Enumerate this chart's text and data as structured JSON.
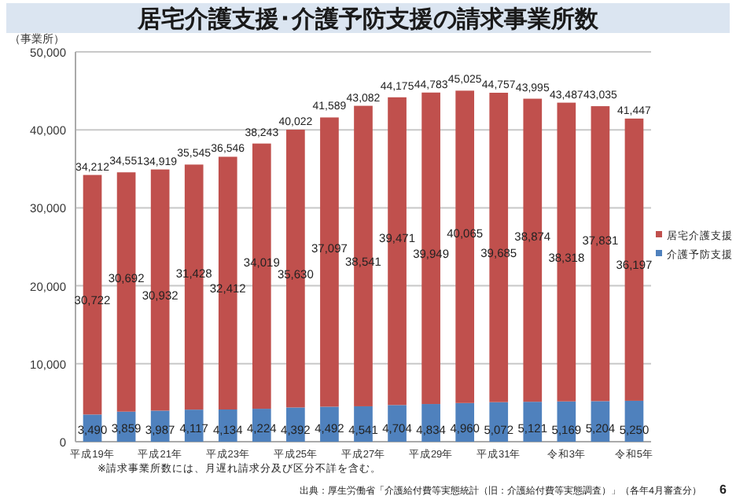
{
  "chart_data": {
    "type": "bar",
    "title": "居宅介護支援･介護予防支援の請求事業所数",
    "ylabel": "（事業所）",
    "categories": [
      "平成19年",
      null,
      "平成21年",
      null,
      "平成23年",
      null,
      "平成25年",
      null,
      "平成27年",
      null,
      "平成29年",
      null,
      "平成31年",
      null,
      "令和3年",
      null,
      "令和5年"
    ],
    "stacked": true,
    "series": [
      {
        "name": "介護予防支援",
        "color": "#4f81bd",
        "values": [
          3490,
          3859,
          3987,
          4117,
          4134,
          4224,
          4392,
          4492,
          4541,
          4704,
          4834,
          4960,
          5072,
          5121,
          5169,
          5204,
          5250
        ],
        "value_labels": [
          "3,490",
          "3,859",
          "3,987",
          "4,117",
          "4,134",
          "4,224",
          "4,392",
          "4,492",
          "4,541",
          "4,704",
          "4,834",
          "4,960",
          "5,072",
          "5,121",
          "5,169",
          "5,204",
          "5,250"
        ]
      },
      {
        "name": "居宅介護支援",
        "color": "#c0504d",
        "values": [
          30722,
          30692,
          30932,
          31428,
          32412,
          34019,
          35630,
          37097,
          38541,
          39471,
          39949,
          40065,
          39685,
          38874,
          38318,
          37831,
          36197
        ],
        "value_labels": [
          "30,722",
          "30,692",
          "30,932",
          "31,428",
          "32,412",
          "34,019",
          "35,630",
          "37,097",
          "38,541",
          "39,471",
          "39,949",
          "40,065",
          "39,685",
          "38,874",
          "38,318",
          "37,831",
          "36,197"
        ]
      }
    ],
    "totals": [
      "34,212",
      "34,551",
      "34,919",
      "35,545",
      "36,546",
      "38,243",
      "40,022",
      "41,589",
      "43,082",
      "44,175",
      "44,783",
      "45,025",
      "44,757",
      "43,995",
      "43,487",
      "43,035",
      "41,447"
    ],
    "ylim": [
      0,
      50000
    ],
    "yticks": [
      {
        "value": 0,
        "label": "0"
      },
      {
        "value": 10000,
        "label": "10,000"
      },
      {
        "value": 20000,
        "label": "20,000"
      },
      {
        "value": 30000,
        "label": "30,000"
      },
      {
        "value": 40000,
        "label": "40,000"
      },
      {
        "value": 50000,
        "label": "50,000"
      }
    ],
    "grid": "y",
    "legend": "right",
    "annotations": [
      "※請求事業所数には、月遅れ請求分及び区分不詳を含む。",
      "出典：厚生労働省「介護給付費等実態統計（旧：介護給付費等実態調査）」（各年4月審査分）",
      "6"
    ]
  }
}
